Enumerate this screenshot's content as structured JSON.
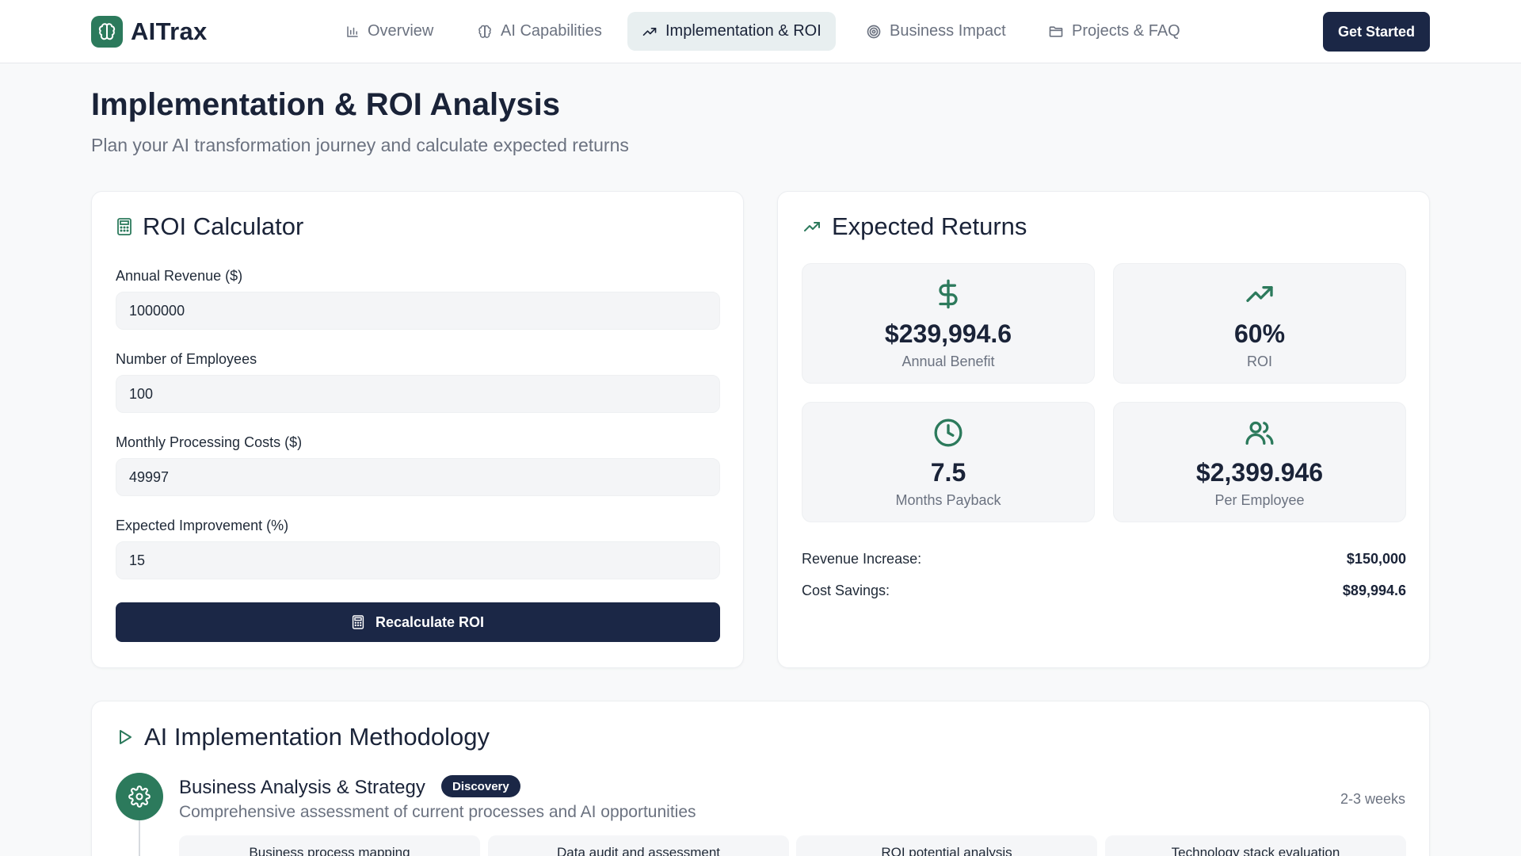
{
  "app": {
    "name": "AITrax",
    "cta_label": "Get Started"
  },
  "nav": {
    "items": [
      {
        "label": "Overview",
        "icon": "bar-chart-icon"
      },
      {
        "label": "AI Capabilities",
        "icon": "brain-icon"
      },
      {
        "label": "Implementation & ROI",
        "icon": "trending-up-icon",
        "active": true
      },
      {
        "label": "Business Impact",
        "icon": "target-icon"
      },
      {
        "label": "Projects & FAQ",
        "icon": "folder-icon"
      }
    ]
  },
  "page": {
    "title": "Implementation & ROI Analysis",
    "subtitle": "Plan your AI transformation journey and calculate expected returns"
  },
  "calculator": {
    "title": "ROI Calculator",
    "fields": [
      {
        "label": "Annual Revenue ($)",
        "value": "1000000"
      },
      {
        "label": "Number of Employees",
        "value": "100"
      },
      {
        "label": "Monthly Processing Costs ($)",
        "value": "49997"
      },
      {
        "label": "Expected Improvement (%)",
        "value": "15"
      }
    ],
    "button_label": "Recalculate ROI"
  },
  "returns": {
    "title": "Expected Returns",
    "metrics": [
      {
        "value": "$239,994.6",
        "label": "Annual Benefit",
        "icon": "dollar-icon"
      },
      {
        "value": "60%",
        "label": "ROI",
        "icon": "trending-up-icon"
      },
      {
        "value": "7.5",
        "label": "Months Payback",
        "icon": "clock-icon"
      },
      {
        "value": "$2,399.946",
        "label": "Per Employee",
        "icon": "users-icon"
      }
    ],
    "summary": [
      {
        "label": "Revenue Increase:",
        "value": "$150,000"
      },
      {
        "label": "Cost Savings:",
        "value": "$89,994.6"
      }
    ]
  },
  "methodology": {
    "title": "AI Implementation Methodology",
    "steps": [
      {
        "title": "Business Analysis & Strategy",
        "badge": "Discovery",
        "description": "Comprehensive assessment of current processes and AI opportunities",
        "duration": "2-3 weeks",
        "tasks": [
          "Business process mapping",
          "Data audit and assessment",
          "ROI potential analysis",
          "Technology stack evaluation"
        ]
      }
    ]
  },
  "colors": {
    "brand_green": "#2c7a5c",
    "navy": "#1b2746",
    "muted_text": "#6b7280",
    "active_tab_bg": "#e8eff0"
  }
}
